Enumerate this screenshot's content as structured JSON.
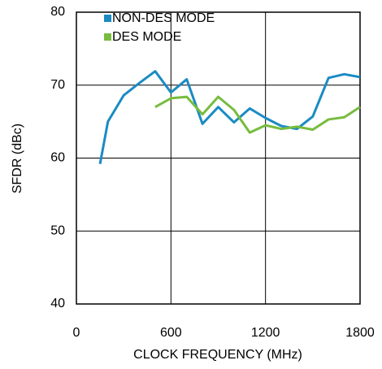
{
  "chart_data": {
    "type": "line",
    "xlabel": "CLOCK FREQUENCY (MHz)",
    "ylabel": "SFDR (dBc)",
    "x": [
      150,
      200,
      300,
      400,
      500,
      600,
      700,
      800,
      900,
      1000,
      1100,
      1200,
      1300,
      1400,
      1500,
      1600,
      1700,
      1800
    ],
    "series": [
      {
        "name": "NON-DES MODE",
        "color": "#1a8bc4",
        "values": [
          59.2,
          65,
          68.6,
          70.3,
          71.9,
          69,
          70.8,
          64.7,
          67,
          64.9,
          66.8,
          65.5,
          64.4,
          64,
          65.7,
          71,
          71.5,
          71.1
        ]
      },
      {
        "name": "DES MODE",
        "color": "#77bc3f",
        "values": [
          null,
          null,
          null,
          null,
          67,
          68.2,
          68.4,
          66,
          68.4,
          66.6,
          63.5,
          64.5,
          64,
          64.3,
          63.9,
          65.3,
          65.6,
          67
        ]
      }
    ],
    "xlim": [
      0,
      1800
    ],
    "xticks": [
      0,
      600,
      1200,
      1800
    ],
    "ylim": [
      40,
      80
    ],
    "yticks": [
      40,
      50,
      60,
      70,
      80
    ],
    "grid": true,
    "legend": "top-left"
  }
}
